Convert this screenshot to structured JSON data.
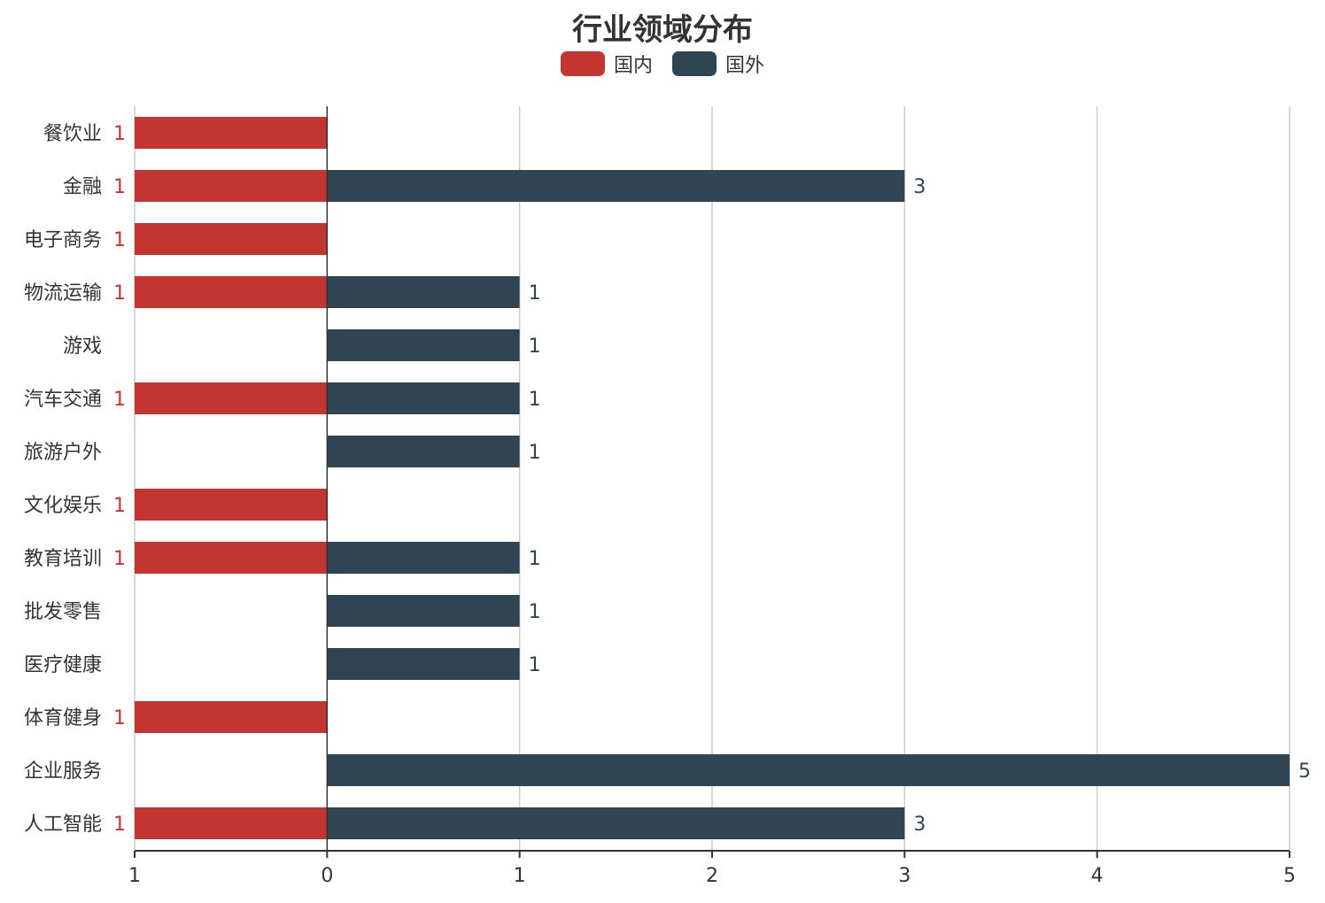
{
  "chart_data": {
    "type": "bar",
    "orientation": "horizontal",
    "title": "行业领域分布",
    "legend_placement": "top-center",
    "grid": true,
    "categories": [
      "餐饮业",
      "金融",
      "电子商务",
      "物流运输",
      "游戏",
      "汽车交通",
      "旅游户外",
      "文化娱乐",
      "教育培训",
      "批发零售",
      "医疗健康",
      "体育健身",
      "企业服务",
      "人工智能"
    ],
    "series": [
      {
        "name": "国内",
        "color": "#c23531",
        "direction": "left",
        "values": [
          1,
          1,
          1,
          1,
          null,
          1,
          null,
          1,
          1,
          null,
          null,
          1,
          null,
          1
        ]
      },
      {
        "name": "国外",
        "color": "#2f4554",
        "direction": "right",
        "values": [
          null,
          3,
          null,
          1,
          1,
          1,
          1,
          null,
          1,
          1,
          1,
          null,
          5,
          3
        ]
      }
    ],
    "xlim": [
      -1,
      5
    ],
    "xticks": [
      {
        "value": -1,
        "label": "1"
      },
      {
        "value": 0,
        "label": "0"
      },
      {
        "value": 1,
        "label": "1"
      },
      {
        "value": 2,
        "label": "2"
      },
      {
        "value": 3,
        "label": "3"
      },
      {
        "value": 4,
        "label": "4"
      },
      {
        "value": 5,
        "label": "5"
      }
    ]
  }
}
